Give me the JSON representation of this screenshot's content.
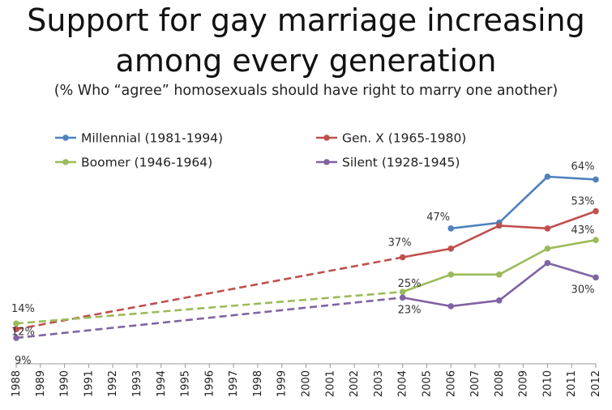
{
  "chart_data": {
    "type": "line",
    "title_line1": "Support for gay marriage increasing",
    "title_line2": "among every generation",
    "subtitle": "(% Who “agree” homosexuals should have right to marry one another)",
    "xlabel": "",
    "ylabel": "",
    "ylim": [
      0,
      70
    ],
    "grid": false,
    "legend_position": "top-left",
    "x": [
      "1988",
      "1989",
      "1990",
      "1991",
      "1992",
      "1993",
      "1994",
      "1995",
      "1996",
      "1997",
      "1998",
      "1999",
      "2000",
      "2001",
      "2002",
      "2003",
      "2004",
      "2005",
      "2006",
      "2007",
      "2008",
      "2009",
      "2010",
      "2011",
      "2012"
    ],
    "series": [
      {
        "name": "Millennial (1981-1994)",
        "color": "#4f81bd",
        "points": [
          [
            2006,
            47
          ],
          [
            2008,
            49
          ],
          [
            2010,
            65
          ],
          [
            2012,
            64
          ]
        ],
        "dashed_to": null
      },
      {
        "name": "Gen. X (1965-1980)",
        "color": "#c0504d",
        "points": [
          [
            1988,
            12
          ],
          [
            2004,
            37
          ],
          [
            2006,
            40
          ],
          [
            2008,
            48
          ],
          [
            2010,
            47
          ],
          [
            2012,
            53
          ]
        ],
        "dashed_to": 2004
      },
      {
        "name": "Boomer (1946-1964)",
        "color": "#9bbb59",
        "points": [
          [
            1988,
            14
          ],
          [
            2004,
            25
          ],
          [
            2006,
            31
          ],
          [
            2008,
            31
          ],
          [
            2010,
            40
          ],
          [
            2012,
            43
          ]
        ],
        "dashed_to": 2004
      },
      {
        "name": "Silent (1928-1945)",
        "color": "#8064a2",
        "points": [
          [
            1988,
            9
          ],
          [
            2004,
            23
          ],
          [
            2006,
            20
          ],
          [
            2008,
            22
          ],
          [
            2010,
            35
          ],
          [
            2012,
            30
          ]
        ],
        "dashed_to": 2004
      }
    ],
    "annotations": [
      {
        "text": "14%",
        "year": 1988,
        "value": 14
      },
      {
        "text": "12%",
        "year": 1988,
        "value": 12
      },
      {
        "text": "9%",
        "year": 1988,
        "value": 9
      },
      {
        "text": "37%",
        "year": 2004,
        "value": 37
      },
      {
        "text": "25%",
        "year": 2004,
        "value": 25
      },
      {
        "text": "23%",
        "year": 2004,
        "value": 23
      },
      {
        "text": "47%",
        "year": 2006,
        "value": 47
      },
      {
        "text": "64%",
        "year": 2012,
        "value": 64
      },
      {
        "text": "53%",
        "year": 2012,
        "value": 53
      },
      {
        "text": "43%",
        "year": 2012,
        "value": 43
      },
      {
        "text": "30%",
        "year": 2012,
        "value": 30
      }
    ]
  }
}
